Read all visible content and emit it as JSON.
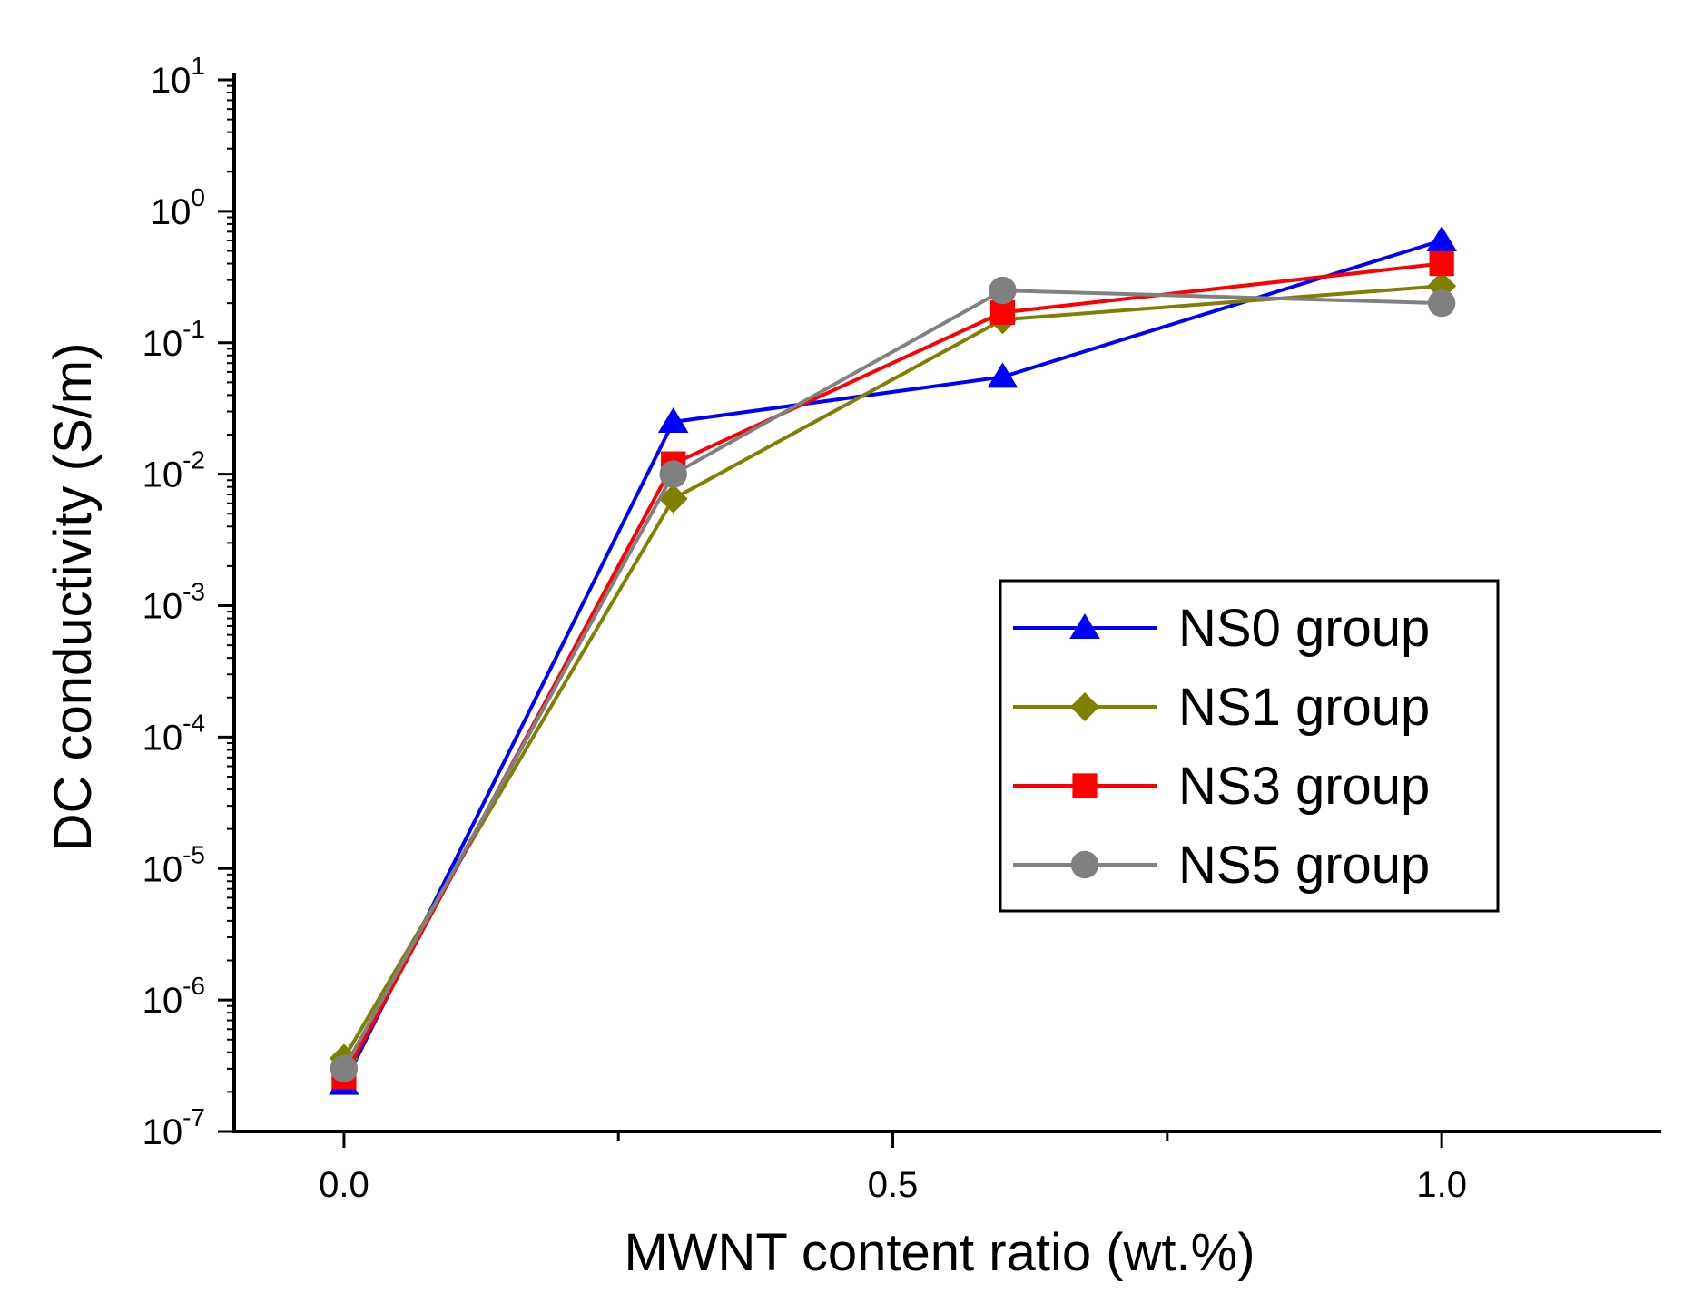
{
  "chart_data": {
    "type": "line",
    "title": "",
    "xlabel": "MWNT content ratio (wt.%)",
    "ylabel": "DC conductivity (S/m)",
    "x": [
      0.0,
      0.3,
      0.6,
      1.0
    ],
    "xlim": [
      -0.1,
      1.2
    ],
    "ylim": [
      1e-07,
      10
    ],
    "yscale": "log",
    "x_ticks": [
      {
        "value": 0.0,
        "label": "0.0"
      },
      {
        "value": 0.5,
        "label": "0.5"
      },
      {
        "value": 1.0,
        "label": "1.0"
      }
    ],
    "x_minor_ticks": [
      0.25,
      0.75
    ],
    "y_ticks": [
      {
        "exp": 1,
        "base": "10",
        "sup": "1"
      },
      {
        "exp": 0,
        "base": "10",
        "sup": "0"
      },
      {
        "exp": -1,
        "base": "10",
        "sup": "-1"
      },
      {
        "exp": -2,
        "base": "10",
        "sup": "-2"
      },
      {
        "exp": -3,
        "base": "10",
        "sup": "-3"
      },
      {
        "exp": -4,
        "base": "10",
        "sup": "-4"
      },
      {
        "exp": -5,
        "base": "10",
        "sup": "-5"
      },
      {
        "exp": -6,
        "base": "10",
        "sup": "-6"
      },
      {
        "exp": -7,
        "base": "10",
        "sup": "-7"
      }
    ],
    "legend_position": "right",
    "series": [
      {
        "name": "NS0 group",
        "color": "#0000ff",
        "marker": "triangle",
        "values": [
          2.3e-07,
          0.025,
          0.055,
          0.6
        ]
      },
      {
        "name": "NS1 group",
        "color": "#808000",
        "marker": "diamond",
        "values": [
          3.6e-07,
          0.0065,
          0.15,
          0.27
        ]
      },
      {
        "name": "NS3 group",
        "color": "#ff0000",
        "marker": "square",
        "values": [
          2.6e-07,
          0.012,
          0.17,
          0.4
        ]
      },
      {
        "name": "NS5 group",
        "color": "#808080",
        "marker": "circle",
        "values": [
          3e-07,
          0.01,
          0.25,
          0.2
        ]
      }
    ]
  }
}
